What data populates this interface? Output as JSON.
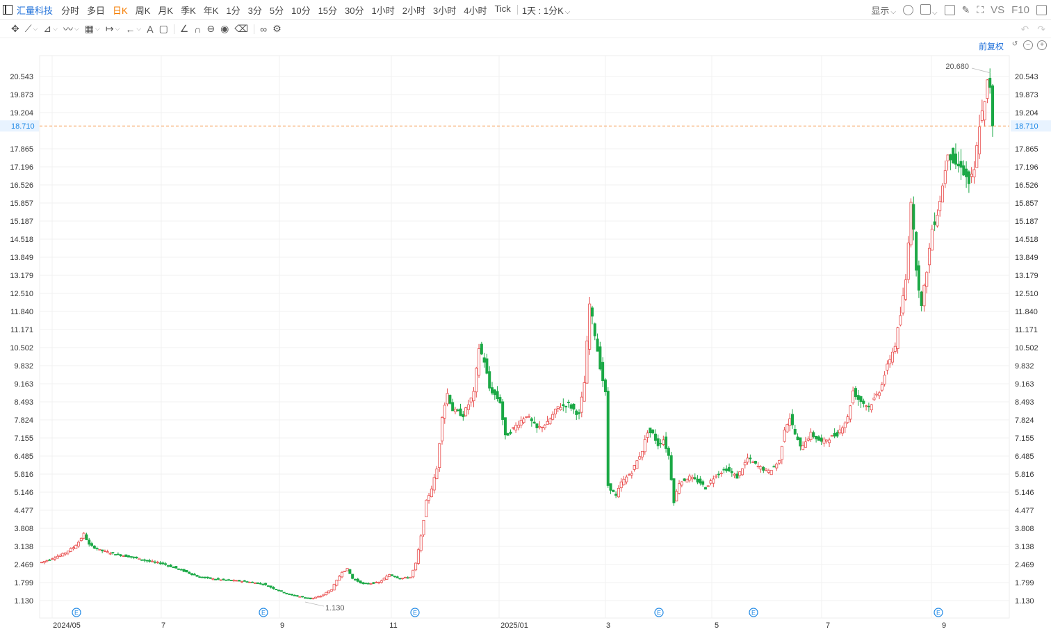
{
  "topbar": {
    "stock_name": "汇量科技",
    "periods": [
      "分时",
      "多日",
      "日K",
      "周K",
      "月K",
      "季K",
      "年K",
      "1分",
      "3分",
      "5分",
      "10分",
      "15分",
      "30分",
      "1小时",
      "2小时",
      "3小时",
      "4小时",
      "Tick"
    ],
    "active_period": "日K",
    "resolution_label": "1天 : 1分K",
    "display_label": "显示",
    "vs_label": "VS",
    "f10_label": "F10"
  },
  "adjust_label": "前复权",
  "chart_data": {
    "type": "candlestick",
    "price_ticks": [
      "20.543",
      "19.873",
      "19.204",
      "17.865",
      "17.196",
      "16.526",
      "15.857",
      "15.187",
      "14.518",
      "13.849",
      "13.179",
      "12.510",
      "11.840",
      "11.171",
      "10.502",
      "9.832",
      "9.163",
      "8.493",
      "7.824",
      "7.155",
      "6.485",
      "5.816",
      "5.146",
      "4.477",
      "3.808",
      "3.138",
      "2.469",
      "1.799",
      "1.130"
    ],
    "time_labels": [
      "2024/05",
      "7",
      "9",
      "11",
      "2025/01",
      "3",
      "5",
      "7",
      "9"
    ],
    "ylim": [
      1.13,
      20.543
    ],
    "current_price": "18.710",
    "high_label": "20.680",
    "low_label": "1.130",
    "event_markers": [
      "E",
      "E",
      "E",
      "E",
      "E",
      "E"
    ],
    "colors": {
      "up": "#e84a4a",
      "down": "#1aa845",
      "current": "#f5a05a",
      "grid": "#f0f0f0"
    },
    "close_path": [
      [
        0,
        2.55
      ],
      [
        4,
        2.7
      ],
      [
        8,
        2.85
      ],
      [
        12,
        3.1
      ],
      [
        14,
        3.3
      ],
      [
        16,
        3.6
      ],
      [
        18,
        3.2
      ],
      [
        22,
        3.0
      ],
      [
        28,
        2.85
      ],
      [
        34,
        2.75
      ],
      [
        40,
        2.6
      ],
      [
        46,
        2.5
      ],
      [
        52,
        2.3
      ],
      [
        60,
        2.0
      ],
      [
        68,
        1.9
      ],
      [
        76,
        1.85
      ],
      [
        84,
        1.75
      ],
      [
        90,
        1.5
      ],
      [
        94,
        1.35
      ],
      [
        98,
        1.28
      ],
      [
        102,
        1.2
      ],
      [
        106,
        1.3
      ],
      [
        110,
        1.55
      ],
      [
        114,
        2.2
      ],
      [
        116,
        2.3
      ],
      [
        118,
        1.95
      ],
      [
        122,
        1.75
      ],
      [
        128,
        1.8
      ],
      [
        132,
        2.1
      ],
      [
        136,
        1.95
      ],
      [
        140,
        2.0
      ],
      [
        142,
        2.5
      ],
      [
        144,
        3.5
      ],
      [
        146,
        4.8
      ],
      [
        148,
        5.3
      ],
      [
        150,
        6.0
      ],
      [
        152,
        8.0
      ],
      [
        154,
        8.8
      ],
      [
        156,
        8.2
      ],
      [
        160,
        8.0
      ],
      [
        164,
        8.8
      ],
      [
        166,
        10.5
      ],
      [
        168,
        10.0
      ],
      [
        170,
        9.0
      ],
      [
        174,
        8.5
      ],
      [
        176,
        7.2
      ],
      [
        180,
        7.6
      ],
      [
        184,
        8.0
      ],
      [
        188,
        7.5
      ],
      [
        192,
        7.7
      ],
      [
        196,
        8.3
      ],
      [
        200,
        8.4
      ],
      [
        204,
        8.0
      ],
      [
        206,
        9.2
      ],
      [
        208,
        12.1
      ],
      [
        210,
        11.0
      ],
      [
        212,
        9.8
      ],
      [
        214,
        8.8
      ],
      [
        215,
        5.4
      ],
      [
        218,
        5.0
      ],
      [
        220,
        5.5
      ],
      [
        224,
        5.9
      ],
      [
        228,
        6.7
      ],
      [
        230,
        7.4
      ],
      [
        232,
        7.3
      ],
      [
        234,
        6.9
      ],
      [
        236,
        7.1
      ],
      [
        238,
        6.5
      ],
      [
        240,
        4.8
      ],
      [
        242,
        5.5
      ],
      [
        246,
        5.7
      ],
      [
        250,
        5.5
      ],
      [
        252,
        5.3
      ],
      [
        256,
        5.8
      ],
      [
        260,
        6.0
      ],
      [
        264,
        5.7
      ],
      [
        268,
        6.4
      ],
      [
        272,
        6.1
      ],
      [
        276,
        5.9
      ],
      [
        280,
        6.3
      ],
      [
        282,
        7.5
      ],
      [
        284,
        7.9
      ],
      [
        286,
        7.3
      ],
      [
        288,
        6.8
      ],
      [
        292,
        7.3
      ],
      [
        296,
        7.0
      ],
      [
        300,
        7.2
      ],
      [
        302,
        7.3
      ],
      [
        304,
        7.6
      ],
      [
        306,
        7.9
      ],
      [
        308,
        8.9
      ],
      [
        310,
        8.6
      ],
      [
        314,
        8.3
      ],
      [
        316,
        8.6
      ],
      [
        318,
        8.9
      ],
      [
        320,
        9.5
      ],
      [
        322,
        10.1
      ],
      [
        324,
        10.6
      ],
      [
        326,
        11.7
      ],
      [
        328,
        13.0
      ],
      [
        329,
        14.5
      ],
      [
        330,
        16.0
      ],
      [
        332,
        13.5
      ],
      [
        334,
        12.0
      ],
      [
        336,
        13.4
      ],
      [
        338,
        14.9
      ],
      [
        340,
        15.5
      ],
      [
        342,
        16.5
      ],
      [
        344,
        17.8
      ],
      [
        346,
        17.4
      ],
      [
        348,
        17.2
      ],
      [
        349,
        17.3
      ],
      [
        350,
        17.0
      ],
      [
        352,
        16.6
      ],
      [
        354,
        17.0
      ],
      [
        356,
        18.8
      ],
      [
        358,
        19.5
      ],
      [
        359,
        20.3
      ],
      [
        360,
        20.2
      ],
      [
        361,
        18.7
      ]
    ]
  }
}
